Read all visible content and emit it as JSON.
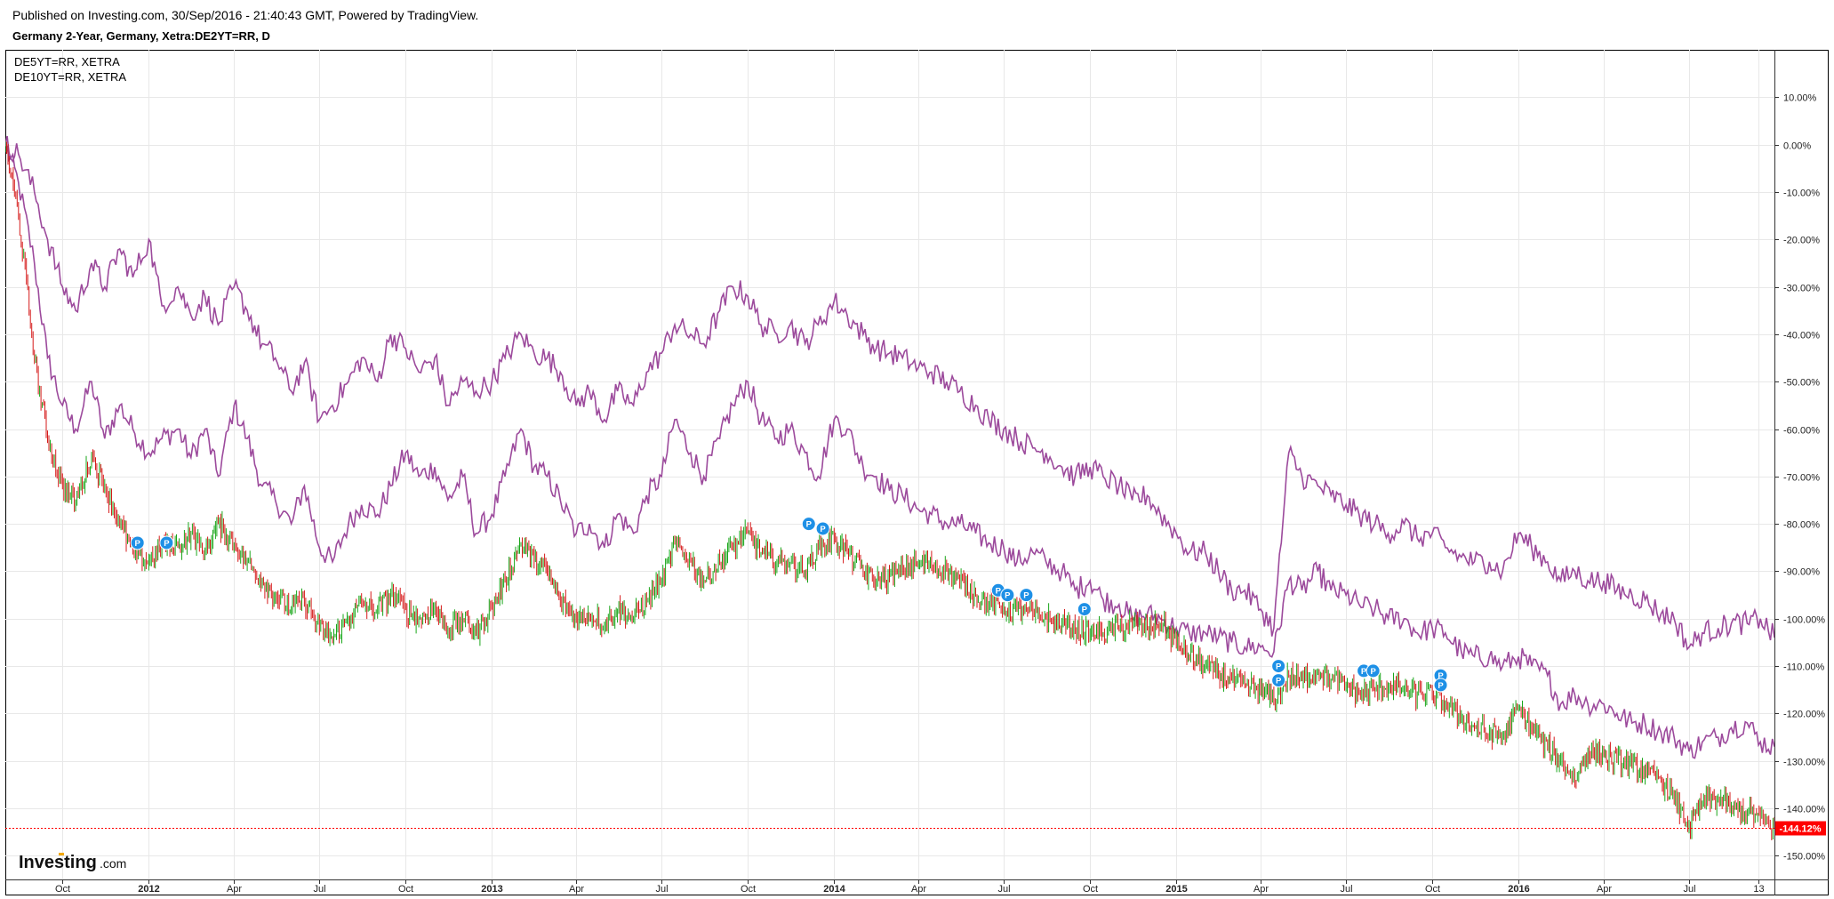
{
  "header": {
    "published": "Published on Investing.com, 30/Sep/2016 - 21:40:43 GMT, Powered by TradingView.",
    "title": "Germany 2-Year, Germany, Xetra:DE2YT=RR, D"
  },
  "legend": [
    "DE5YT=RR, XETRA",
    "DE10YT=RR, XETRA"
  ],
  "logo": {
    "main": "Investing",
    "suffix": ".com"
  },
  "colors": {
    "compare_line": "#9c4a9c",
    "candle_up": "#1aa61a",
    "candle_down": "#d51a1a",
    "last_price": "#ff0000",
    "marker": "#1e90e6",
    "grid": "#e8e8e8"
  },
  "chart_data": {
    "type": "line",
    "title": "Germany 2-Year, Germany, Xetra:DE2YT=RR, D",
    "y_unit": "percent change",
    "ylim": [
      -155,
      20
    ],
    "y_ticks": [
      "10.00%",
      "0.00%",
      "-10.00%",
      "-20.00%",
      "-30.00%",
      "-40.00%",
      "-50.00%",
      "-60.00%",
      "-70.00%",
      "-80.00%",
      "-90.00%",
      "-100.00%",
      "-110.00%",
      "-120.00%",
      "-130.00%",
      "-140.00%",
      "-150.00%"
    ],
    "y_tick_values": [
      10,
      0,
      -10,
      -20,
      -30,
      -40,
      -50,
      -60,
      -70,
      -80,
      -90,
      -100,
      -110,
      -120,
      -130,
      -140,
      -150
    ],
    "xlim": [
      "2011-08-01",
      "2016-09-30"
    ],
    "x_ticks": [
      {
        "label": "Oct",
        "date": "2011-10-01",
        "bold": false
      },
      {
        "label": "2012",
        "date": "2012-01-01",
        "bold": true
      },
      {
        "label": "Apr",
        "date": "2012-04-01",
        "bold": false
      },
      {
        "label": "Jul",
        "date": "2012-07-01",
        "bold": false
      },
      {
        "label": "Oct",
        "date": "2012-10-01",
        "bold": false
      },
      {
        "label": "2013",
        "date": "2013-01-01",
        "bold": true
      },
      {
        "label": "Apr",
        "date": "2013-04-01",
        "bold": false
      },
      {
        "label": "Jul",
        "date": "2013-07-01",
        "bold": false
      },
      {
        "label": "Oct",
        "date": "2013-10-01",
        "bold": false
      },
      {
        "label": "2014",
        "date": "2014-01-01",
        "bold": true
      },
      {
        "label": "Apr",
        "date": "2014-04-01",
        "bold": false
      },
      {
        "label": "Jul",
        "date": "2014-07-01",
        "bold": false
      },
      {
        "label": "Oct",
        "date": "2014-10-01",
        "bold": false
      },
      {
        "label": "2015",
        "date": "2015-01-01",
        "bold": true
      },
      {
        "label": "Apr",
        "date": "2015-04-01",
        "bold": false
      },
      {
        "label": "Jul",
        "date": "2015-07-01",
        "bold": false
      },
      {
        "label": "Oct",
        "date": "2015-10-01",
        "bold": false
      },
      {
        "label": "2016",
        "date": "2016-01-01",
        "bold": true
      },
      {
        "label": "Apr",
        "date": "2016-04-01",
        "bold": false
      },
      {
        "label": "Jul",
        "date": "2016-07-01",
        "bold": false
      },
      {
        "label": "13",
        "date": "2016-09-13",
        "bold": false
      }
    ],
    "grid": true,
    "legend_position": "top-left",
    "last_value": {
      "label": "-144.12%",
      "value": -144.12
    },
    "series": [
      {
        "name": "DE5YT=RR, XETRA",
        "style": "line",
        "x": [
          "2011-08-01",
          "2011-08-15",
          "2011-09-01",
          "2011-09-15",
          "2011-10-01",
          "2011-10-15",
          "2011-11-01",
          "2011-11-15",
          "2011-12-01",
          "2011-12-15",
          "2012-01-01",
          "2012-01-15",
          "2012-02-01",
          "2012-02-15",
          "2012-03-01",
          "2012-03-15",
          "2012-04-01",
          "2012-04-15",
          "2012-05-01",
          "2012-05-15",
          "2012-06-01",
          "2012-06-15",
          "2012-07-01",
          "2012-07-15",
          "2012-08-01",
          "2012-08-15",
          "2012-09-01",
          "2012-09-15",
          "2012-10-01",
          "2012-10-15",
          "2012-11-01",
          "2012-11-15",
          "2012-12-01",
          "2012-12-15",
          "2013-01-01",
          "2013-01-15",
          "2013-02-01",
          "2013-02-15",
          "2013-03-01",
          "2013-03-15",
          "2013-04-01",
          "2013-04-15",
          "2013-05-01",
          "2013-05-15",
          "2013-06-01",
          "2013-06-15",
          "2013-07-01",
          "2013-07-15",
          "2013-08-01",
          "2013-08-15",
          "2013-09-01",
          "2013-09-15",
          "2013-10-01",
          "2013-10-15",
          "2013-11-01",
          "2013-11-15",
          "2013-12-01",
          "2013-12-15",
          "2014-01-01",
          "2014-01-15",
          "2014-02-01",
          "2014-02-15",
          "2014-03-01",
          "2014-03-15",
          "2014-04-01",
          "2014-04-15",
          "2014-05-01",
          "2014-05-15",
          "2014-06-01",
          "2014-06-15",
          "2014-07-01",
          "2014-07-15",
          "2014-08-01",
          "2014-08-15",
          "2014-09-01",
          "2014-09-15",
          "2014-10-01",
          "2014-10-15",
          "2014-11-01",
          "2014-11-15",
          "2014-12-01",
          "2014-12-15",
          "2015-01-01",
          "2015-01-15",
          "2015-02-01",
          "2015-02-15",
          "2015-03-01",
          "2015-03-15",
          "2015-04-01",
          "2015-04-15",
          "2015-05-01",
          "2015-05-15",
          "2015-06-01",
          "2015-06-15",
          "2015-07-01",
          "2015-07-15",
          "2015-08-01",
          "2015-08-15",
          "2015-09-01",
          "2015-09-15",
          "2015-10-01",
          "2015-10-15",
          "2015-11-01",
          "2015-11-15",
          "2015-12-01",
          "2015-12-15",
          "2016-01-01",
          "2016-01-15",
          "2016-02-01",
          "2016-02-15",
          "2016-03-01",
          "2016-03-15",
          "2016-04-01",
          "2016-04-15",
          "2016-05-01",
          "2016-05-15",
          "2016-06-01",
          "2016-06-15",
          "2016-07-01",
          "2016-07-15",
          "2016-08-01",
          "2016-08-15",
          "2016-09-01",
          "2016-09-15",
          "2016-09-30"
        ],
        "values": [
          0,
          -8,
          -25,
          -45,
          -55,
          -60,
          -50,
          -62,
          -55,
          -60,
          -65,
          -62,
          -60,
          -66,
          -60,
          -70,
          -55,
          -62,
          -72,
          -75,
          -80,
          -72,
          -85,
          -88,
          -80,
          -76,
          -78,
          -72,
          -65,
          -70,
          -68,
          -75,
          -70,
          -82,
          -78,
          -70,
          -60,
          -68,
          -70,
          -75,
          -82,
          -80,
          -85,
          -78,
          -82,
          -74,
          -70,
          -58,
          -65,
          -70,
          -62,
          -55,
          -50,
          -58,
          -62,
          -60,
          -65,
          -70,
          -58,
          -60,
          -68,
          -70,
          -73,
          -74,
          -77,
          -78,
          -80,
          -80,
          -82,
          -84,
          -85,
          -88,
          -86,
          -88,
          -90,
          -94,
          -92,
          -96,
          -97,
          -100,
          -99,
          -100,
          -102,
          -103,
          -103,
          -104,
          -105,
          -106,
          -106,
          -107,
          -92,
          -94,
          -90,
          -94,
          -95,
          -97,
          -98,
          -100,
          -100,
          -103,
          -102,
          -103,
          -107,
          -108,
          -108,
          -110,
          -108,
          -110,
          -112,
          -118,
          -116,
          -118,
          -118,
          -120,
          -122,
          -122,
          -124,
          -125,
          -128,
          -126,
          -125,
          -123,
          -122,
          -126,
          -127
        ]
      },
      {
        "name": "DE10YT=RR, XETRA",
        "style": "line",
        "x": [
          "2011-08-01",
          "2011-08-15",
          "2011-09-01",
          "2011-09-15",
          "2011-10-01",
          "2011-10-15",
          "2011-11-01",
          "2011-11-15",
          "2011-12-01",
          "2011-12-15",
          "2012-01-01",
          "2012-01-15",
          "2012-02-01",
          "2012-02-15",
          "2012-03-01",
          "2012-03-15",
          "2012-04-01",
          "2012-04-15",
          "2012-05-01",
          "2012-05-15",
          "2012-06-01",
          "2012-06-15",
          "2012-07-01",
          "2012-07-15",
          "2012-08-01",
          "2012-08-15",
          "2012-09-01",
          "2012-09-15",
          "2012-10-01",
          "2012-10-15",
          "2012-11-01",
          "2012-11-15",
          "2012-12-01",
          "2012-12-15",
          "2013-01-01",
          "2013-01-15",
          "2013-02-01",
          "2013-02-15",
          "2013-03-01",
          "2013-03-15",
          "2013-04-01",
          "2013-04-15",
          "2013-05-01",
          "2013-05-15",
          "2013-06-01",
          "2013-06-15",
          "2013-07-01",
          "2013-07-15",
          "2013-08-01",
          "2013-08-15",
          "2013-09-01",
          "2013-09-15",
          "2013-10-01",
          "2013-10-15",
          "2013-11-01",
          "2013-11-15",
          "2013-12-01",
          "2013-12-15",
          "2014-01-01",
          "2014-01-15",
          "2014-02-01",
          "2014-02-15",
          "2014-03-01",
          "2014-03-15",
          "2014-04-01",
          "2014-04-15",
          "2014-05-01",
          "2014-05-15",
          "2014-06-01",
          "2014-06-15",
          "2014-07-01",
          "2014-07-15",
          "2014-08-01",
          "2014-08-15",
          "2014-09-01",
          "2014-09-15",
          "2014-10-01",
          "2014-10-15",
          "2014-11-01",
          "2014-11-15",
          "2014-12-01",
          "2014-12-15",
          "2015-01-01",
          "2015-01-15",
          "2015-02-01",
          "2015-02-15",
          "2015-03-01",
          "2015-03-15",
          "2015-04-01",
          "2015-04-15",
          "2015-05-01",
          "2015-05-15",
          "2015-06-01",
          "2015-06-15",
          "2015-07-01",
          "2015-07-15",
          "2015-08-01",
          "2015-08-15",
          "2015-09-01",
          "2015-09-15",
          "2015-10-01",
          "2015-10-15",
          "2015-11-01",
          "2015-11-15",
          "2015-12-01",
          "2015-12-15",
          "2016-01-01",
          "2016-01-15",
          "2016-02-01",
          "2016-02-15",
          "2016-03-01",
          "2016-03-15",
          "2016-04-01",
          "2016-04-15",
          "2016-05-01",
          "2016-05-15",
          "2016-06-01",
          "2016-06-15",
          "2016-07-01",
          "2016-07-15",
          "2016-08-01",
          "2016-08-15",
          "2016-09-01",
          "2016-09-15",
          "2016-09-30"
        ],
        "values": [
          0,
          -2,
          -10,
          -20,
          -30,
          -35,
          -25,
          -30,
          -22,
          -28,
          -20,
          -34,
          -30,
          -36,
          -32,
          -38,
          -30,
          -35,
          -42,
          -45,
          -52,
          -46,
          -58,
          -55,
          -50,
          -45,
          -50,
          -40,
          -43,
          -48,
          -45,
          -55,
          -50,
          -52,
          -50,
          -45,
          -40,
          -44,
          -45,
          -48,
          -55,
          -52,
          -58,
          -52,
          -55,
          -48,
          -44,
          -38,
          -40,
          -42,
          -35,
          -30,
          -32,
          -38,
          -40,
          -38,
          -42,
          -38,
          -33,
          -36,
          -40,
          -43,
          -44,
          -45,
          -47,
          -48,
          -50,
          -52,
          -55,
          -58,
          -60,
          -62,
          -64,
          -65,
          -68,
          -70,
          -68,
          -70,
          -72,
          -75,
          -74,
          -78,
          -82,
          -86,
          -86,
          -90,
          -94,
          -94,
          -98,
          -102,
          -65,
          -70,
          -72,
          -74,
          -76,
          -78,
          -80,
          -82,
          -80,
          -83,
          -82,
          -85,
          -87,
          -88,
          -88,
          -90,
          -82,
          -85,
          -88,
          -92,
          -90,
          -92,
          -92,
          -94,
          -95,
          -96,
          -99,
          -100,
          -106,
          -103,
          -102,
          -101,
          -101,
          -100,
          -104
        ]
      },
      {
        "name": "DE2YT=RR",
        "style": "candles",
        "x": [
          "2011-08-01",
          "2011-08-15",
          "2011-09-01",
          "2011-09-15",
          "2011-10-01",
          "2011-10-15",
          "2011-11-01",
          "2011-11-15",
          "2011-12-01",
          "2011-12-15",
          "2012-01-01",
          "2012-01-15",
          "2012-02-01",
          "2012-02-15",
          "2012-03-01",
          "2012-03-15",
          "2012-04-01",
          "2012-04-15",
          "2012-05-01",
          "2012-05-15",
          "2012-06-01",
          "2012-06-15",
          "2012-07-01",
          "2012-07-15",
          "2012-08-01",
          "2012-08-15",
          "2012-09-01",
          "2012-09-15",
          "2012-10-01",
          "2012-10-15",
          "2012-11-01",
          "2012-11-15",
          "2012-12-01",
          "2012-12-15",
          "2013-01-01",
          "2013-01-15",
          "2013-02-01",
          "2013-02-15",
          "2013-03-01",
          "2013-03-15",
          "2013-04-01",
          "2013-04-15",
          "2013-05-01",
          "2013-05-15",
          "2013-06-01",
          "2013-06-15",
          "2013-07-01",
          "2013-07-15",
          "2013-08-01",
          "2013-08-15",
          "2013-09-01",
          "2013-09-15",
          "2013-10-01",
          "2013-10-15",
          "2013-11-01",
          "2013-11-15",
          "2013-12-01",
          "2013-12-15",
          "2014-01-01",
          "2014-01-15",
          "2014-02-01",
          "2014-02-15",
          "2014-03-01",
          "2014-03-15",
          "2014-04-01",
          "2014-04-15",
          "2014-05-01",
          "2014-05-15",
          "2014-06-01",
          "2014-06-15",
          "2014-07-01",
          "2014-07-15",
          "2014-08-01",
          "2014-08-15",
          "2014-09-01",
          "2014-09-15",
          "2014-10-01",
          "2014-10-15",
          "2014-11-01",
          "2014-11-15",
          "2014-12-01",
          "2014-12-15",
          "2015-01-01",
          "2015-01-15",
          "2015-02-01",
          "2015-02-15",
          "2015-03-01",
          "2015-03-15",
          "2015-04-01",
          "2015-04-15",
          "2015-05-01",
          "2015-05-15",
          "2015-06-01",
          "2015-06-15",
          "2015-07-01",
          "2015-07-15",
          "2015-08-01",
          "2015-08-15",
          "2015-09-01",
          "2015-09-15",
          "2015-10-01",
          "2015-10-15",
          "2015-11-01",
          "2015-11-15",
          "2015-12-01",
          "2015-12-15",
          "2016-01-01",
          "2016-01-15",
          "2016-02-01",
          "2016-02-15",
          "2016-03-01",
          "2016-03-15",
          "2016-04-01",
          "2016-04-15",
          "2016-05-01",
          "2016-05-15",
          "2016-06-01",
          "2016-06-15",
          "2016-07-01",
          "2016-07-15",
          "2016-08-01",
          "2016-08-15",
          "2016-09-01",
          "2016-09-15",
          "2016-09-30"
        ],
        "values": [
          0,
          -15,
          -45,
          -62,
          -72,
          -75,
          -66,
          -72,
          -80,
          -86,
          -88,
          -84,
          -85,
          -82,
          -86,
          -80,
          -84,
          -88,
          -92,
          -95,
          -98,
          -96,
          -102,
          -104,
          -100,
          -97,
          -98,
          -95,
          -98,
          -100,
          -98,
          -102,
          -100,
          -103,
          -98,
          -92,
          -84,
          -88,
          -90,
          -96,
          -100,
          -99,
          -101,
          -98,
          -100,
          -96,
          -92,
          -84,
          -88,
          -92,
          -88,
          -85,
          -82,
          -86,
          -88,
          -88,
          -90,
          -85,
          -83,
          -86,
          -90,
          -92,
          -91,
          -90,
          -88,
          -89,
          -90,
          -92,
          -95,
          -97,
          -98,
          -98,
          -99,
          -100,
          -101,
          -102,
          -103,
          -103,
          -102,
          -101,
          -102,
          -101,
          -105,
          -108,
          -110,
          -112,
          -113,
          -114,
          -115,
          -117,
          -112,
          -113,
          -111,
          -113,
          -114,
          -116,
          -115,
          -114,
          -115,
          -116,
          -116,
          -118,
          -121,
          -123,
          -124,
          -125,
          -119,
          -123,
          -127,
          -130,
          -134,
          -128,
          -129,
          -130,
          -131,
          -132,
          -134,
          -138,
          -144,
          -139,
          -138,
          -140,
          -141,
          -142,
          -144
        ]
      }
    ],
    "markers": [
      {
        "date": "2011-12-20",
        "value": -84,
        "label": "P"
      },
      {
        "date": "2012-01-20",
        "value": -84,
        "label": "P"
      },
      {
        "date": "2013-12-05",
        "value": -80,
        "label": "P"
      },
      {
        "date": "2013-12-20",
        "value": -81,
        "label": "P"
      },
      {
        "date": "2014-06-25",
        "value": -94,
        "label": "P"
      },
      {
        "date": "2014-07-05",
        "value": -95,
        "label": "P"
      },
      {
        "date": "2014-07-25",
        "value": -95,
        "label": "P"
      },
      {
        "date": "2014-09-25",
        "value": -98,
        "label": "P"
      },
      {
        "date": "2015-04-20",
        "value": -110,
        "label": "P"
      },
      {
        "date": "2015-04-20",
        "value": -113,
        "label": "P"
      },
      {
        "date": "2015-07-20",
        "value": -111,
        "label": "P"
      },
      {
        "date": "2015-07-30",
        "value": -111,
        "label": "P"
      },
      {
        "date": "2015-10-10",
        "value": -112,
        "label": "P"
      },
      {
        "date": "2015-10-10",
        "value": -114,
        "label": "P"
      }
    ]
  }
}
